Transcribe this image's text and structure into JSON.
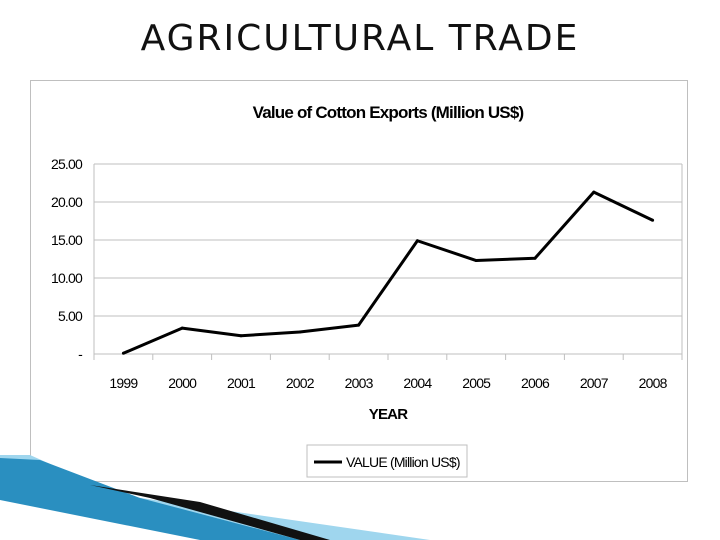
{
  "slide": {
    "title": "AGRICULTURAL TRADE"
  },
  "colors": {
    "line": "#000000",
    "grid": "#bfbfbf",
    "frame": "#bfbfbf",
    "accent_blue": "#2a8fc0",
    "accent_light": "#9fd6ee"
  },
  "chart_data": {
    "type": "line",
    "title": "Value of Cotton Exports (Million US$)",
    "xlabel": "YEAR",
    "ylabel": "",
    "categories": [
      "1999",
      "2000",
      "2001",
      "2002",
      "2003",
      "2004",
      "2005",
      "2006",
      "2007",
      "2008"
    ],
    "series": [
      {
        "name": "VALUE (Million US$)",
        "values": [
          0.1,
          3.4,
          2.4,
          2.9,
          3.8,
          14.9,
          12.3,
          12.6,
          21.3,
          17.6
        ]
      }
    ],
    "ylim": [
      0,
      25
    ],
    "yticks": [
      {
        "value": 25,
        "label": "25.00"
      },
      {
        "value": 20,
        "label": "20.00"
      },
      {
        "value": 15,
        "label": "15.00"
      },
      {
        "value": 10,
        "label": "10.00"
      },
      {
        "value": 5,
        "label": "5.00"
      },
      {
        "value": 0,
        "label": "-"
      }
    ],
    "grid": true,
    "legend_position": "bottom-center"
  }
}
